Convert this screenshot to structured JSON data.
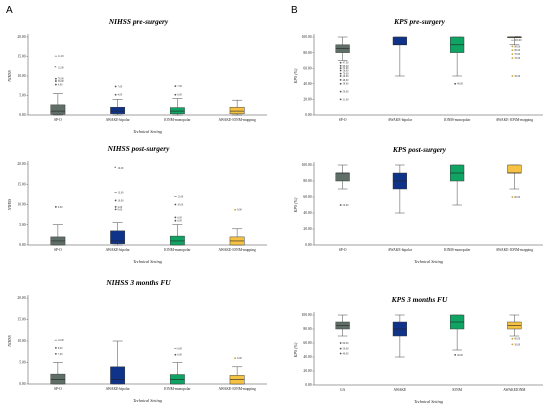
{
  "panel_letters": [
    "A",
    "B"
  ],
  "chart_data": [
    {
      "type": "boxplot",
      "title": "NIHSS pre-surgery",
      "ylabel": "NIHSS",
      "xlabel": "Technical Setting",
      "ylim": [
        0,
        20
      ],
      "yticks": [
        "0.00",
        "5.00",
        "10.00",
        "15.00",
        "20.00"
      ],
      "categories": [
        "SP-O",
        "AWAKE-bipolar",
        "IONM-monopolar",
        "AWAKE-IONM-mapping"
      ],
      "colors": [
        "#5f6f68",
        "#10338a",
        "#0fa463",
        "#f6c244"
      ],
      "series": [
        {
          "min": 0,
          "q1": 0.2,
          "median": 1,
          "q3": 2.6,
          "max": 5.5
        },
        {
          "min": 0,
          "q1": 0.3,
          "median": 1,
          "q3": 2.0,
          "max": 4.0
        },
        {
          "min": 0,
          "q1": 0.3,
          "median": 1,
          "q3": 1.9,
          "max": 4.2
        },
        {
          "min": 0,
          "q1": 0.3,
          "median": 1,
          "q3": 2.0,
          "max": 3.8
        }
      ],
      "outliers": [
        {
          "cat": 0,
          "y": 15.1,
          "label": "11.00",
          "marker": "dash"
        },
        {
          "cat": 0,
          "y": 12.2,
          "label": "12.00",
          "marker": "star"
        },
        {
          "cat": 0,
          "y": 9.3,
          "label": "76.00",
          "marker": "dot"
        },
        {
          "cat": 0,
          "y": 8.7,
          "label": "38.00",
          "marker": "dot"
        },
        {
          "cat": 0,
          "y": 7.8,
          "label": "4.00",
          "marker": "dot"
        },
        {
          "cat": 1,
          "y": 7.3,
          "label": "7.00",
          "marker": "dot"
        },
        {
          "cat": 1,
          "y": 5.2,
          "label": "4.00",
          "marker": "dot"
        },
        {
          "cat": 2,
          "y": 7.4,
          "label": "7.00",
          "marker": "dot"
        },
        {
          "cat": 2,
          "y": 5.2,
          "label": "6.00",
          "marker": "dot"
        }
      ]
    },
    {
      "type": "boxplot",
      "title": "NIHSS post-surgery",
      "ylabel": "NIHSS",
      "xlabel": "Technical Setting",
      "ylim": [
        0,
        20
      ],
      "yticks": [
        "0.00",
        "5.00",
        "10.00",
        "15.00",
        "20.00"
      ],
      "categories": [
        "SP-O",
        "AWAKE-bipolar",
        "IONM-monopolar",
        "AWAKE-IONM-mapping"
      ],
      "colors": [
        "#5f6f68",
        "#10338a",
        "#0fa463",
        "#f6c244"
      ],
      "series": [
        {
          "min": 0,
          "q1": 0,
          "median": 1,
          "q3": 2.0,
          "max": 5.0
        },
        {
          "min": 0,
          "q1": 0.3,
          "median": 1,
          "q3": 3.5,
          "max": 5.5
        },
        {
          "min": 0,
          "q1": 0,
          "median": 1,
          "q3": 2.2,
          "max": 5.0
        },
        {
          "min": 0,
          "q1": 0,
          "median": 1,
          "q3": 2.0,
          "max": 4.0
        }
      ],
      "outliers": [
        {
          "cat": 0,
          "y": 9.4,
          "label": "9.00",
          "marker": "dot"
        },
        {
          "cat": 1,
          "y": 19.0,
          "label": "19.00",
          "marker": "star"
        },
        {
          "cat": 1,
          "y": 13.0,
          "label": "13.00",
          "marker": "dash"
        },
        {
          "cat": 1,
          "y": 11.0,
          "label": "10.00",
          "marker": "dot"
        },
        {
          "cat": 1,
          "y": 9.4,
          "label": "4.00",
          "marker": "dot"
        },
        {
          "cat": 1,
          "y": 8.8,
          "label": "9.00",
          "marker": "dot"
        },
        {
          "cat": 2,
          "y": 12.0,
          "label": "12.00",
          "marker": "dash"
        },
        {
          "cat": 2,
          "y": 10.0,
          "label": "10.00",
          "marker": "dot"
        },
        {
          "cat": 2,
          "y": 6.8,
          "label": "6.00",
          "marker": "dot"
        },
        {
          "cat": 2,
          "y": 6.0,
          "label": "6.00",
          "marker": "dot"
        },
        {
          "cat": 3,
          "y": 8.7,
          "label": "8.00",
          "marker": "dot"
        }
      ]
    },
    {
      "type": "boxplot",
      "title": "NIHSS 3 months FU",
      "ylabel": "NIHSS",
      "xlabel": "Technical Setting",
      "ylim": [
        0,
        20
      ],
      "yticks": [
        "0.00",
        "5.00",
        "10.00",
        "15.00",
        "20.00"
      ],
      "categories": [
        "SP-O",
        "AWAKE-bipolar",
        "IONM-monopolar",
        "AWAKE-IONM-mapping"
      ],
      "colors": [
        "#5f6f68",
        "#10338a",
        "#0fa463",
        "#f6c244"
      ],
      "series": [
        {
          "min": 0,
          "q1": 0,
          "median": 1,
          "q3": 2.3,
          "max": 5.0
        },
        {
          "min": 0,
          "q1": 0,
          "median": 1,
          "q3": 4.0,
          "max": 10.0
        },
        {
          "min": 0,
          "q1": 0,
          "median": 1,
          "q3": 2.2,
          "max": 5.0
        },
        {
          "min": 0,
          "q1": 0,
          "median": 1,
          "q3": 2.0,
          "max": 4.0
        }
      ],
      "outliers": [
        {
          "cat": 0,
          "y": 10.2,
          "label": "10.00",
          "marker": "dash"
        },
        {
          "cat": 0,
          "y": 8.4,
          "label": "8.00",
          "marker": "dot"
        },
        {
          "cat": 0,
          "y": 7.0,
          "label": "7.00",
          "marker": "dot"
        },
        {
          "cat": 2,
          "y": 8.2,
          "label": "8.00",
          "marker": "dash"
        },
        {
          "cat": 2,
          "y": 6.8,
          "label": "6.00",
          "marker": "dot"
        },
        {
          "cat": 3,
          "y": 6.0,
          "label": "6.00",
          "marker": "dot"
        }
      ]
    },
    {
      "type": "boxplot",
      "title": "KPS pre-surgery",
      "ylabel": "KPS (%)",
      "xlabel": "",
      "ylim": [
        0,
        100
      ],
      "yticks": [
        "0.00",
        "20.00",
        "40.00",
        "60.00",
        "80.00",
        "100.00"
      ],
      "categories": [
        "SP-O",
        "AWAKE-bipolar",
        "IONM-monopolar",
        "AWAKE-IONM-mapping"
      ],
      "colors": [
        "#5f6f68",
        "#10338a",
        "#0fa463",
        "#f6c244"
      ],
      "series": [
        {
          "min": 70,
          "q1": 80,
          "median": 85,
          "q3": 90,
          "max": 100
        },
        {
          "min": 50,
          "q1": 90,
          "median": 90,
          "q3": 100,
          "max": 100
        },
        {
          "min": 50,
          "q1": 80,
          "median": 90,
          "q3": 100,
          "max": 100
        },
        {
          "min": 90,
          "q1": 100,
          "median": 100,
          "q3": 100,
          "max": 100
        }
      ],
      "outliers": [
        {
          "cat": 0,
          "y": 67,
          "label": "47.00",
          "marker": "dot"
        },
        {
          "cat": 0,
          "y": 63,
          "label": "60.00",
          "marker": "dot"
        },
        {
          "cat": 0,
          "y": 60,
          "label": "52.00",
          "marker": "dot"
        },
        {
          "cat": 0,
          "y": 57,
          "label": "56.00",
          "marker": "dot"
        },
        {
          "cat": 0,
          "y": 53,
          "label": "70.00",
          "marker": "dot"
        },
        {
          "cat": 0,
          "y": 50,
          "label": "26.00",
          "marker": "dot"
        },
        {
          "cat": 0,
          "y": 45,
          "label": "48.00",
          "marker": "dot"
        },
        {
          "cat": 0,
          "y": 40,
          "label": "58.00",
          "marker": "dot"
        },
        {
          "cat": 0,
          "y": 30,
          "label": "50.00",
          "marker": "dot"
        },
        {
          "cat": 0,
          "y": 20,
          "label": "21.00",
          "marker": "dot"
        },
        {
          "cat": 2,
          "y": 40,
          "label": "40.00",
          "marker": "dot"
        },
        {
          "cat": 3,
          "y": 100,
          "label": "100.00",
          "marker": "dash"
        },
        {
          "cat": 3,
          "y": 96,
          "label": "100.00",
          "marker": "dash"
        },
        {
          "cat": 3,
          "y": 88,
          "label": "90.00",
          "marker": "dot"
        },
        {
          "cat": 3,
          "y": 83,
          "label": "80.00",
          "marker": "dot"
        },
        {
          "cat": 3,
          "y": 78,
          "label": "70.00",
          "marker": "dot"
        },
        {
          "cat": 3,
          "y": 73,
          "label": "70.00",
          "marker": "dot"
        },
        {
          "cat": 3,
          "y": 50,
          "label": "50.00",
          "marker": "dot"
        }
      ]
    },
    {
      "type": "boxplot",
      "title": "KPS post-surgery",
      "ylabel": "KPS (%)",
      "xlabel": "Technical Setting",
      "ylim": [
        0,
        100
      ],
      "yticks": [
        "0.00",
        "20.00",
        "40.00",
        "60.00",
        "80.00",
        "100.00"
      ],
      "categories": [
        "SP-O",
        "AWAKE-bipolar",
        "IONM-monopolar",
        "AWAKE-IONM-mapping"
      ],
      "colors": [
        "#5f6f68",
        "#10338a",
        "#0fa463",
        "#f6c244"
      ],
      "series": [
        {
          "min": 70,
          "q1": 80,
          "median": 90,
          "q3": 90,
          "max": 100
        },
        {
          "min": 40,
          "q1": 70,
          "median": 80,
          "q3": 90,
          "max": 100
        },
        {
          "min": 50,
          "q1": 80,
          "median": 90,
          "q3": 100,
          "max": 100
        },
        {
          "min": 70,
          "q1": 90,
          "median": 90,
          "q3": 100,
          "max": 100
        }
      ],
      "outliers": [
        {
          "cat": 0,
          "y": 50,
          "label": "50.00",
          "marker": "dot"
        },
        {
          "cat": 3,
          "y": 60,
          "label": "60.00",
          "marker": "dot"
        }
      ]
    },
    {
      "type": "boxplot",
      "title": "KPS 3 months FU",
      "ylabel": "KPS (%)",
      "xlabel": "Technical Setting",
      "ylim": [
        0,
        100
      ],
      "yticks": [
        "0.00",
        "20.00",
        "40.00",
        "60.00",
        "80.00",
        "100.00"
      ],
      "categories": [
        "GA",
        "AWAKE",
        "IONM",
        "AWAKEIONM"
      ],
      "colors": [
        "#5f6f68",
        "#10338a",
        "#0fa463",
        "#f6c244"
      ],
      "series": [
        {
          "min": 70,
          "q1": 80,
          "median": 85,
          "q3": 90,
          "max": 100
        },
        {
          "min": 40,
          "q1": 70,
          "median": 80,
          "q3": 90,
          "max": 100
        },
        {
          "min": 50,
          "q1": 80,
          "median": 90,
          "q3": 100,
          "max": 100
        },
        {
          "min": 70,
          "q1": 80,
          "median": 85,
          "q3": 90,
          "max": 100
        }
      ],
      "outliers": [
        {
          "cat": 0,
          "y": 60,
          "label": "60.00",
          "marker": "dot"
        },
        {
          "cat": 0,
          "y": 52,
          "label": "50.00",
          "marker": "dot"
        },
        {
          "cat": 0,
          "y": 45,
          "label": "40.00",
          "marker": "dot"
        },
        {
          "cat": 2,
          "y": 43,
          "label": "40.00",
          "marker": "dot"
        },
        {
          "cat": 3,
          "y": 66,
          "label": "60.00",
          "marker": "dot"
        },
        {
          "cat": 3,
          "y": 58,
          "label": "50.00",
          "marker": "dot"
        }
      ]
    }
  ]
}
